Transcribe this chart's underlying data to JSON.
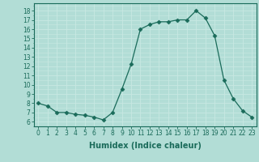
{
  "x": [
    0,
    1,
    2,
    3,
    4,
    5,
    6,
    7,
    8,
    9,
    10,
    11,
    12,
    13,
    14,
    15,
    16,
    17,
    18,
    19,
    20,
    21,
    22,
    23
  ],
  "y": [
    8.0,
    7.7,
    7.0,
    7.0,
    6.8,
    6.7,
    6.5,
    6.2,
    7.0,
    9.5,
    12.2,
    16.0,
    16.5,
    16.8,
    16.8,
    17.0,
    17.0,
    18.0,
    17.2,
    15.3,
    10.5,
    8.5,
    7.2,
    6.5
  ],
  "line_color": "#1a6b5a",
  "marker": "D",
  "marker_size": 2.5,
  "bg_color": "#b2ddd6",
  "grid_color": "#c8e8e2",
  "xlabel": "Humidex (Indice chaleur)",
  "ylabel_ticks": [
    6,
    7,
    8,
    9,
    10,
    11,
    12,
    13,
    14,
    15,
    16,
    17,
    18
  ],
  "xtick_labels": [
    "0",
    "1",
    "2",
    "3",
    "4",
    "5",
    "6",
    "7",
    "8",
    "9",
    "10",
    "11",
    "12",
    "13",
    "14",
    "15",
    "16",
    "17",
    "18",
    "19",
    "20",
    "21",
    "22",
    "23"
  ],
  "ylim": [
    5.5,
    18.8
  ],
  "xlim": [
    -0.5,
    23.5
  ],
  "font_color": "#1a6b5a",
  "tick_fontsize": 5.5,
  "xlabel_fontsize": 7.0
}
